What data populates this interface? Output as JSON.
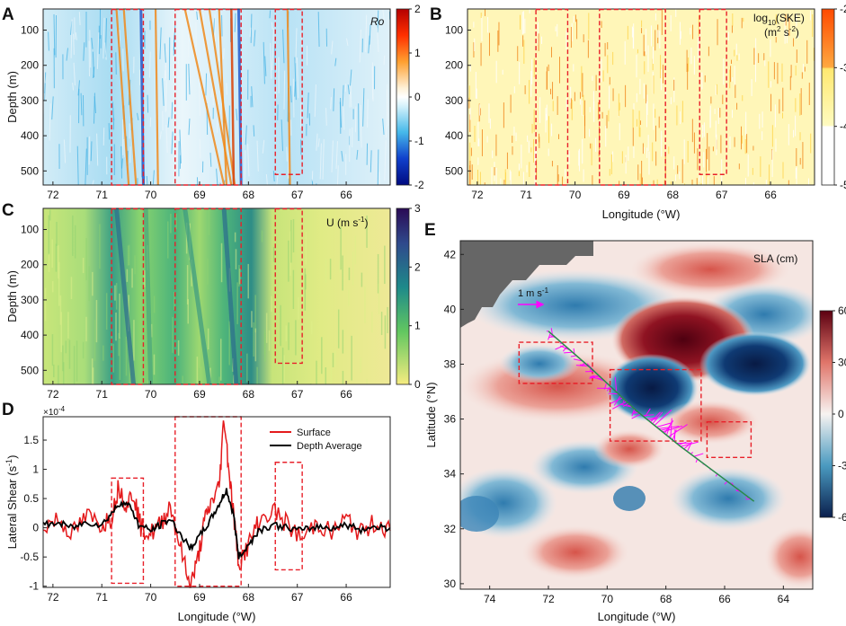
{
  "chart_data": [
    {
      "panel": "A",
      "type": "heatmap",
      "title": "Ro",
      "ylabel": "Depth (m)",
      "xlabel": "",
      "xticks": [
        "72",
        "71",
        "70",
        "69",
        "68",
        "67",
        "66"
      ],
      "yticks": [
        "100",
        "200",
        "300",
        "400",
        "500"
      ],
      "xlim": [
        72.2,
        65.1
      ],
      "ylim": [
        40,
        540
      ],
      "colorbar": {
        "ticks": [
          "2",
          "1",
          "0",
          "-1",
          "-2"
        ],
        "range": [
          -2,
          2
        ]
      },
      "boxes": [
        [
          70.8,
          70.15
        ],
        [
          69.5,
          68.15
        ],
        [
          67.45,
          66.9
        ]
      ],
      "box_depth_max": [
        540,
        540,
        510
      ]
    },
    {
      "panel": "B",
      "type": "heatmap",
      "title": "log10(SKE) (m2 s-2)",
      "title_line1_main": "log",
      "title_line1_sub": "10",
      "title_line1_rest": "(SKE)",
      "title_line2_main": "(m",
      "title_line2_sup1": "2",
      "title_line2_mid": " s",
      "title_line2_sup2": "-2",
      "title_line2_end": ")",
      "ylabel": "",
      "xlabel": "Longitude (°W)",
      "xticks": [
        "72",
        "71",
        "70",
        "69",
        "68",
        "67",
        "66"
      ],
      "yticks": [
        "100",
        "200",
        "300",
        "400",
        "500"
      ],
      "colorbar": {
        "ticks": [
          "-2",
          "-3",
          "-4",
          "-5"
        ],
        "range": [
          -5,
          -2
        ]
      },
      "boxes": [
        [
          70.8,
          70.15
        ],
        [
          69.5,
          68.15
        ],
        [
          67.45,
          66.9
        ]
      ]
    },
    {
      "panel": "C",
      "type": "heatmap",
      "title_main": "U (m s",
      "title_sup": "-1",
      "title_end": ")",
      "ylabel": "Depth (m)",
      "xticks": [
        "72",
        "71",
        "70",
        "69",
        "68",
        "67",
        "66"
      ],
      "yticks": [
        "100",
        "200",
        "300",
        "400",
        "500"
      ],
      "colorbar": {
        "ticks": [
          "3",
          "2",
          "1",
          "0"
        ],
        "range": [
          0,
          3
        ]
      },
      "boxes": [
        [
          70.8,
          70.15
        ],
        [
          69.5,
          68.15
        ],
        [
          67.45,
          66.9
        ]
      ],
      "box_depth_max": [
        540,
        540,
        480
      ]
    },
    {
      "panel": "D",
      "type": "line",
      "ylabel_main": "Lateral Shear (s",
      "ylabel_sup": "-1",
      "ylabel_end": ")",
      "xlabel": "Longitude (°W)",
      "scale_label": "×10",
      "scale_exp": "-4",
      "xticks": [
        "72",
        "71",
        "70",
        "69",
        "68",
        "67",
        "66"
      ],
      "yticks": [
        "1.5",
        "1",
        "0.5",
        "0",
        "-0.5",
        "-1"
      ],
      "xlim": [
        72.2,
        65.1
      ],
      "ylim": [
        -1.02,
        1.9
      ],
      "legend": [
        "Surface",
        "Depth Average"
      ],
      "series": [
        {
          "name": "Surface",
          "color": "#e41a1c",
          "points": [
            [
              72.2,
              0.02
            ],
            [
              71.9,
              0.15
            ],
            [
              71.6,
              -0.1
            ],
            [
              71.3,
              0.2
            ],
            [
              71.0,
              0.05
            ],
            [
              70.8,
              0.2
            ],
            [
              70.65,
              0.72
            ],
            [
              70.5,
              0.4
            ],
            [
              70.35,
              0.6
            ],
            [
              70.2,
              0.0
            ],
            [
              70.0,
              -0.1
            ],
            [
              69.8,
              0.05
            ],
            [
              69.6,
              0.4
            ],
            [
              69.4,
              -0.3
            ],
            [
              69.2,
              -1.0
            ],
            [
              69.05,
              -0.6
            ],
            [
              68.9,
              0.1
            ],
            [
              68.75,
              0.45
            ],
            [
              68.6,
              0.7
            ],
            [
              68.5,
              1.9
            ],
            [
              68.4,
              1.0
            ],
            [
              68.3,
              0.2
            ],
            [
              68.2,
              -0.6
            ],
            [
              68.0,
              -0.3
            ],
            [
              67.8,
              0.1
            ],
            [
              67.5,
              0.3
            ],
            [
              67.2,
              0.05
            ],
            [
              66.9,
              -0.2
            ],
            [
              66.6,
              0.1
            ],
            [
              66.3,
              -0.1
            ],
            [
              66.0,
              0.15
            ],
            [
              65.7,
              -0.1
            ],
            [
              65.4,
              0.1
            ],
            [
              65.1,
              -0.05
            ]
          ]
        },
        {
          "name": "Depth Average",
          "color": "#000000",
          "points": [
            [
              72.2,
              0.05
            ],
            [
              71.9,
              0.08
            ],
            [
              71.6,
              0.0
            ],
            [
              71.3,
              0.1
            ],
            [
              71.0,
              0.05
            ],
            [
              70.8,
              0.25
            ],
            [
              70.6,
              0.45
            ],
            [
              70.4,
              0.35
            ],
            [
              70.25,
              0.05
            ],
            [
              70.0,
              -0.05
            ],
            [
              69.8,
              0.05
            ],
            [
              69.6,
              0.15
            ],
            [
              69.4,
              -0.1
            ],
            [
              69.2,
              -0.35
            ],
            [
              69.0,
              -0.15
            ],
            [
              68.8,
              0.1
            ],
            [
              68.6,
              0.4
            ],
            [
              68.45,
              0.65
            ],
            [
              68.3,
              0.2
            ],
            [
              68.2,
              -0.5
            ],
            [
              68.0,
              -0.3
            ],
            [
              67.8,
              -0.05
            ],
            [
              67.5,
              0.05
            ],
            [
              67.2,
              0.0
            ],
            [
              66.9,
              -0.05
            ],
            [
              66.6,
              0.02
            ],
            [
              66.3,
              0.0
            ],
            [
              66.0,
              0.05
            ],
            [
              65.7,
              -0.03
            ],
            [
              65.4,
              0.02
            ],
            [
              65.1,
              0.0
            ]
          ]
        }
      ],
      "boxes": [
        [
          70.8,
          70.15,
          -0.95,
          0.85
        ],
        [
          69.5,
          68.15,
          -1.0,
          1.9
        ],
        [
          67.45,
          66.9,
          -0.72,
          1.12
        ]
      ]
    },
    {
      "panel": "E",
      "type": "heatmap",
      "title": "SLA (cm)",
      "ylabel": "Latitude (°N)",
      "xlabel": "Longitude (°W)",
      "arrow_label_main": "1 m s",
      "arrow_label_sup": "-1",
      "xticks": [
        "74",
        "72",
        "70",
        "68",
        "66",
        "64"
      ],
      "yticks": [
        "42",
        "40",
        "38",
        "36",
        "34",
        "32",
        "30"
      ],
      "xlim": [
        75,
        63
      ],
      "ylim": [
        29.8,
        42.5
      ],
      "colorbar": {
        "ticks": [
          "60",
          "30",
          "0",
          "-30",
          "-60"
        ],
        "range": [
          -60,
          60
        ]
      },
      "track": [
        [
          72.0,
          39.2
        ],
        [
          70.5,
          37.8
        ],
        [
          69.0,
          36.3
        ],
        [
          67.5,
          35.0
        ],
        [
          65.0,
          33.0
        ]
      ],
      "boxes": [
        [
          73.0,
          70.5,
          37.3,
          38.8
        ],
        [
          69.9,
          66.8,
          35.2,
          37.8
        ],
        [
          66.6,
          65.1,
          34.6,
          35.9
        ]
      ]
    }
  ]
}
